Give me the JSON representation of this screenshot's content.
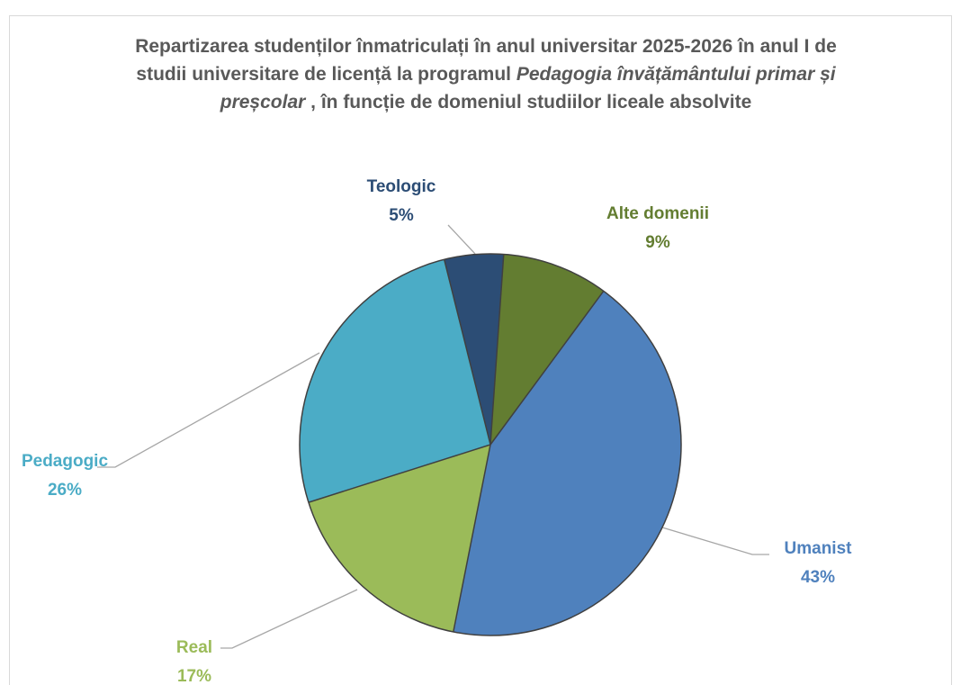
{
  "chart_data": {
    "type": "pie",
    "title_parts": [
      {
        "text": "Repartizarea studenților înmatriculați în anul universitar 2025-2026 în anul I de studii universitare de licență la programul ",
        "italic": false
      },
      {
        "text": "Pedagogia învățământului primar și preșcolar",
        "italic": true
      },
      {
        "text": " , în funcție de domeniul studiilor liceale absolvite",
        "italic": false
      }
    ],
    "categories": [
      "Alte domenii",
      "Umanist",
      "Real",
      "Pedagogic",
      "Teologic"
    ],
    "values": [
      9,
      43,
      17,
      26,
      5
    ],
    "value_labels": [
      "9%",
      "43%",
      "17%",
      "26%",
      "5%"
    ],
    "colors": [
      "#637d31",
      "#4f81bd",
      "#9bbb59",
      "#4bacc6",
      "#2c4d75"
    ]
  }
}
